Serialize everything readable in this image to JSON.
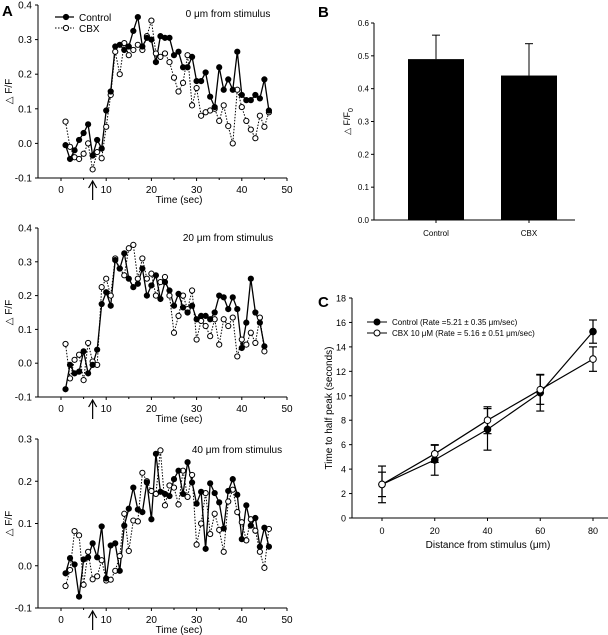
{
  "panel_labels": {
    "a": "A",
    "b": "B",
    "c": "C"
  },
  "chart_data": [
    {
      "id": "A1",
      "type": "line",
      "title": "0 μm from stimulus",
      "xlabel": "Time (sec)",
      "ylabel": "△ F/F",
      "xlim": [
        -5,
        50
      ],
      "ylim": [
        -0.1,
        0.4
      ],
      "xticks": [
        0,
        10,
        20,
        30,
        40,
        50
      ],
      "yticks": [
        -0.1,
        0.0,
        0.1,
        0.2,
        0.3,
        0.4
      ],
      "ytick_labels": [
        "-0.1",
        "0.0",
        "0.1",
        "0.2",
        "0.3",
        "0.4"
      ],
      "stimulus_arrow_x": 7,
      "legend": {
        "position": "top-left",
        "entries": [
          "Control",
          "CBX"
        ]
      },
      "x": [
        1,
        2,
        3,
        4,
        5,
        6,
        7,
        8,
        9,
        10,
        11,
        12,
        13,
        14,
        15,
        16,
        17,
        18,
        19,
        20,
        21,
        22,
        23,
        24,
        25,
        26,
        27,
        28,
        29,
        30,
        31,
        32,
        33,
        34,
        35,
        36,
        37,
        38,
        39,
        40,
        41,
        42,
        43,
        44,
        45,
        46
      ],
      "series": [
        {
          "name": "Control",
          "marker": "filled",
          "line": "solid",
          "values": [
            -0.005,
            -0.045,
            -0.02,
            0.01,
            0.03,
            0.055,
            -0.035,
            0.01,
            -0.015,
            0.095,
            0.15,
            0.28,
            0.285,
            0.27,
            0.28,
            0.325,
            0.365,
            0.28,
            0.305,
            0.3,
            0.235,
            0.31,
            0.305,
            0.305,
            0.255,
            0.265,
            0.22,
            0.22,
            0.25,
            0.18,
            0.18,
            0.205,
            0.135,
            0.105,
            0.22,
            0.155,
            0.185,
            0.155,
            0.265,
            0.14,
            0.125,
            0.125,
            0.14,
            0.13,
            0.185,
            0.095
          ]
        },
        {
          "name": "CBX",
          "marker": "open",
          "line": "dotted",
          "values": [
            0.063,
            -0.01,
            -0.04,
            -0.045,
            -0.03,
            0.0,
            -0.075,
            -0.025,
            -0.043,
            0.048,
            0.14,
            0.265,
            0.2,
            0.29,
            0.255,
            0.27,
            0.285,
            0.27,
            0.31,
            0.355,
            0.26,
            0.25,
            0.26,
            0.235,
            0.19,
            0.15,
            0.175,
            0.255,
            0.11,
            0.16,
            0.08,
            0.09,
            0.095,
            0.1,
            0.065,
            0.11,
            0.05,
            0.0,
            0.155,
            0.105,
            0.065,
            0.04,
            0.015,
            0.08,
            0.048,
            0.09
          ]
        }
      ]
    },
    {
      "id": "A2",
      "type": "line",
      "title": "20 μm from stimulus",
      "xlabel": "Time (sec)",
      "ylabel": "△ F/F",
      "xlim": [
        -5,
        50
      ],
      "ylim": [
        -0.1,
        0.4
      ],
      "xticks": [
        0,
        10,
        20,
        30,
        40,
        50
      ],
      "yticks": [
        -0.1,
        0.0,
        0.1,
        0.2,
        0.3,
        0.4
      ],
      "ytick_labels": [
        "-0.1",
        "0.0",
        "0.1",
        "0.2",
        "0.3",
        "0.4"
      ],
      "stimulus_arrow_x": 7,
      "x": [
        1,
        2,
        3,
        4,
        5,
        6,
        7,
        8,
        9,
        10,
        11,
        12,
        13,
        14,
        15,
        16,
        17,
        18,
        19,
        20,
        21,
        22,
        23,
        24,
        25,
        26,
        27,
        28,
        29,
        30,
        31,
        32,
        33,
        34,
        35,
        36,
        37,
        38,
        39,
        40,
        41,
        42,
        43,
        44,
        45
      ],
      "series": [
        {
          "name": "Control",
          "marker": "filled",
          "line": "solid",
          "values": [
            -0.077,
            -0.005,
            -0.03,
            -0.025,
            0.035,
            -0.03,
            -0.005,
            0.04,
            0.175,
            0.21,
            0.17,
            0.305,
            0.28,
            0.325,
            0.25,
            0.225,
            0.235,
            0.28,
            0.2,
            0.23,
            0.26,
            0.19,
            0.24,
            0.215,
            0.17,
            0.205,
            0.165,
            0.15,
            0.17,
            0.13,
            0.14,
            0.14,
            0.13,
            0.15,
            0.2,
            0.195,
            0.16,
            0.195,
            0.16,
            0.045,
            0.12,
            0.25,
            0.15,
            0.12,
            0.05
          ]
        },
        {
          "name": "CBX",
          "marker": "open",
          "line": "dotted",
          "values": [
            0.057,
            -0.045,
            0.01,
            0.025,
            -0.05,
            0.06,
            0.005,
            -0.005,
            0.225,
            0.25,
            0.2,
            0.31,
            0.28,
            0.26,
            0.34,
            0.35,
            0.25,
            0.31,
            0.25,
            0.265,
            0.2,
            0.24,
            0.255,
            0.2,
            0.09,
            0.14,
            0.2,
            0.16,
            0.215,
            0.07,
            0.125,
            0.11,
            0.08,
            0.13,
            0.055,
            0.13,
            0.11,
            0.135,
            0.02,
            0.07,
            0.055,
            0.09,
            0.06,
            0.135,
            0.035
          ]
        }
      ]
    },
    {
      "id": "A3",
      "type": "line",
      "title": "40 μm from stimulus",
      "xlabel": "Time (sec)",
      "ylabel": "△ F/F",
      "xlim": [
        -5,
        50
      ],
      "ylim": [
        -0.1,
        0.3
      ],
      "xticks": [
        0,
        10,
        20,
        30,
        40,
        50
      ],
      "yticks": [
        -0.1,
        0.0,
        0.1,
        0.2,
        0.3
      ],
      "ytick_labels": [
        "-0.1",
        "0.0",
        "0.1",
        "0.2",
        "0.3"
      ],
      "stimulus_arrow_x": 7,
      "x": [
        1,
        2,
        3,
        4,
        5,
        6,
        7,
        8,
        9,
        10,
        11,
        12,
        13,
        14,
        15,
        16,
        17,
        18,
        19,
        20,
        21,
        22,
        23,
        24,
        25,
        26,
        27,
        28,
        29,
        30,
        31,
        32,
        33,
        34,
        35,
        36,
        37,
        38,
        39,
        40,
        41,
        42,
        43,
        44,
        45,
        46
      ],
      "series": [
        {
          "name": "Control",
          "marker": "filled",
          "line": "solid",
          "values": [
            -0.018,
            0.018,
            0.003,
            -0.073,
            0.015,
            0.02,
            0.053,
            0.02,
            0.093,
            -0.03,
            0.048,
            0.053,
            -0.012,
            0.095,
            0.135,
            0.185,
            0.133,
            0.127,
            0.197,
            0.11,
            0.265,
            0.175,
            0.17,
            0.165,
            0.205,
            0.225,
            0.17,
            0.245,
            0.197,
            0.147,
            0.175,
            0.04,
            0.195,
            0.172,
            0.15,
            0.088,
            0.177,
            0.205,
            0.168,
            0.063,
            0.143,
            0.095,
            0.113,
            0.045,
            0.09,
            0.045
          ]
        },
        {
          "name": "CBX",
          "marker": "open",
          "line": "dotted",
          "values": [
            -0.048,
            -0.01,
            0.082,
            0.072,
            -0.045,
            0.033,
            -0.032,
            -0.025,
            0.013,
            -0.035,
            -0.033,
            -0.012,
            0.023,
            0.123,
            0.035,
            0.107,
            0.105,
            0.22,
            0.2,
            0.177,
            0.17,
            0.273,
            0.143,
            0.19,
            0.185,
            0.145,
            0.225,
            0.163,
            0.215,
            0.05,
            0.1,
            0.172,
            0.075,
            0.123,
            0.085,
            0.033,
            0.152,
            0.18,
            0.127,
            0.103,
            0.06,
            0.11,
            0.083,
            0.033,
            -0.005,
            0.087
          ]
        }
      ]
    },
    {
      "id": "B",
      "type": "bar",
      "categories": [
        "Control",
        "CBX"
      ],
      "values": [
        0.49,
        0.44
      ],
      "error_upper": [
        0.073,
        0.097
      ],
      "title": "",
      "xlabel": "",
      "ylabel": "△ F/F0",
      "ylim": [
        0.0,
        0.6
      ],
      "yticks": [
        0.0,
        0.1,
        0.2,
        0.3,
        0.4,
        0.5,
        0.6
      ],
      "ytick_labels": [
        "0.0",
        "0.1",
        "0.2",
        "0.3",
        "0.4",
        "0.5",
        "0.6"
      ]
    },
    {
      "id": "C",
      "type": "line",
      "title": "",
      "xlabel": "Distance from stimulus (μm)",
      "ylabel": "Time to half peak (seconds)",
      "xlim": [
        -10,
        87
      ],
      "ylim": [
        0,
        18
      ],
      "xticks": [
        0,
        20,
        40,
        60,
        80
      ],
      "yticks": [
        0,
        2,
        4,
        6,
        8,
        10,
        12,
        14,
        16,
        18
      ],
      "legend": {
        "position": "top-left",
        "entries": [
          "Control (Rate =5.21 ± 0.35 μm/sec)",
          "CBX 10 μM (Rate = 5.16 ± 0.51 μm/sec)"
        ]
      },
      "x": [
        0,
        20,
        40,
        60,
        80
      ],
      "series": [
        {
          "name": "Control (Rate =5.21 ± 0.35 μm/sec)",
          "marker": "filled",
          "values": [
            2.75,
            4.75,
            7.25,
            10.25,
            15.25
          ],
          "errors": [
            1.5,
            1.25,
            1.7,
            1.5,
            0.95
          ]
        },
        {
          "name": "CBX 10 μM (Rate = 5.16 ± 0.51 μm/sec)",
          "marker": "open",
          "values": [
            2.75,
            5.25,
            8.0,
            10.5,
            13.0
          ],
          "errors": [
            1.0,
            0.7,
            1.1,
            1.2,
            1.0
          ]
        }
      ]
    }
  ]
}
